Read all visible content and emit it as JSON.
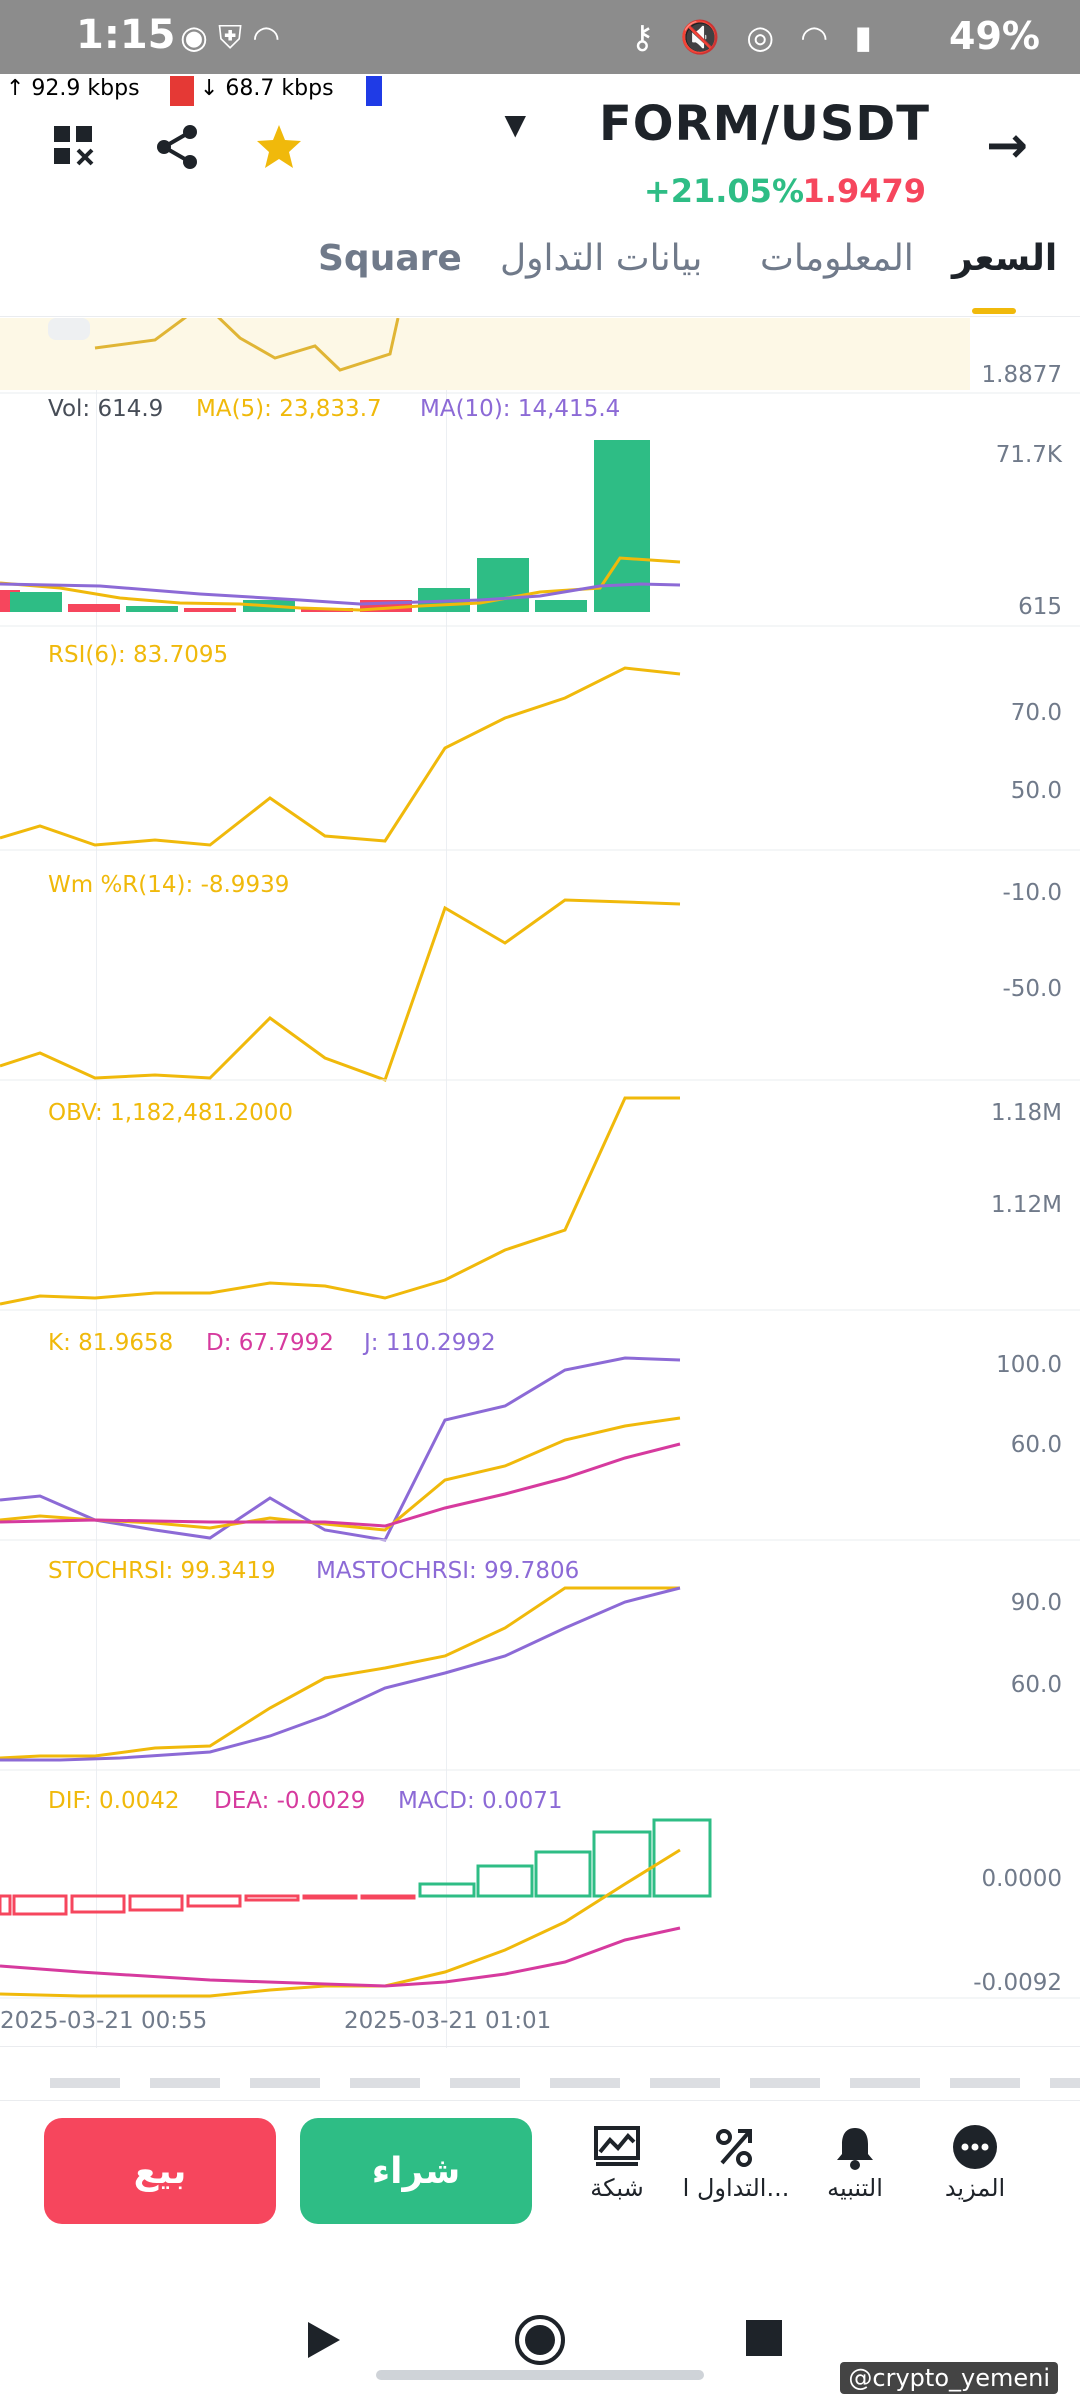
{
  "status_bar": {
    "time": "1:15",
    "battery": "49%",
    "net_up": "↑  92.9 kbps",
    "net_down": "↓  68.7 kbps"
  },
  "header": {
    "pair": "FORM/USDT",
    "change": "+21.05%",
    "last_price": "1.9479"
  },
  "tabs": [
    {
      "label": "السعر",
      "active": true
    },
    {
      "label": "المعلومات",
      "active": false
    },
    {
      "label": "بيانات التداول",
      "active": false
    },
    {
      "label": "Square",
      "active": false
    }
  ],
  "price_panel": {
    "axis": "1.8877"
  },
  "volume": {
    "vol": "Vol: 614.9",
    "ma5": "MA(5): 23,833.7",
    "ma10": "MA(10): 14,415.4",
    "axis_top": "71.7K",
    "axis_bottom": "615"
  },
  "rsi": {
    "label": "RSI(6): 83.7095",
    "axis_top": "70.0",
    "axis_bottom": "50.0"
  },
  "wr": {
    "label": "Wm %R(14): -8.9939",
    "axis_top": "-10.0",
    "axis_bottom": "-50.0"
  },
  "obv": {
    "label": "OBV: 1,182,481.2000",
    "axis_top": "1.18M",
    "axis_bottom": "1.12M"
  },
  "kdj": {
    "k": "K: 81.9658",
    "d": "D: 67.7992",
    "j": "J: 110.2992",
    "axis_top": "100.0",
    "axis_bottom": "60.0"
  },
  "stochrsi": {
    "label": "STOCHRSI: 99.3419",
    "ma": "MASTOCHRSI: 99.7806",
    "axis_top": "90.0",
    "axis_bottom": "60.0"
  },
  "macd": {
    "dif": "DIF: 0.0042",
    "dea": "DEA: -0.0029",
    "macd": "MACD: 0.0071",
    "axis_top": "0.0000",
    "axis_bottom": "-0.0092"
  },
  "time_axis": {
    "t1": "2025-03-21 00:55",
    "t2": "2025-03-21 01:01"
  },
  "bottom_bar": {
    "sell": "بيع",
    "buy": "شراء",
    "grid": "شبكة",
    "trade": "التداول ا...",
    "alert": "التنبيه",
    "more": "المزيد"
  },
  "watermark": "@crypto_yemeni",
  "colors": {
    "up": "#2ebd85",
    "down": "#f6465d",
    "accent": "#f0b90b",
    "purple": "#8c6ad6",
    "pink": "#d63a9e"
  }
}
